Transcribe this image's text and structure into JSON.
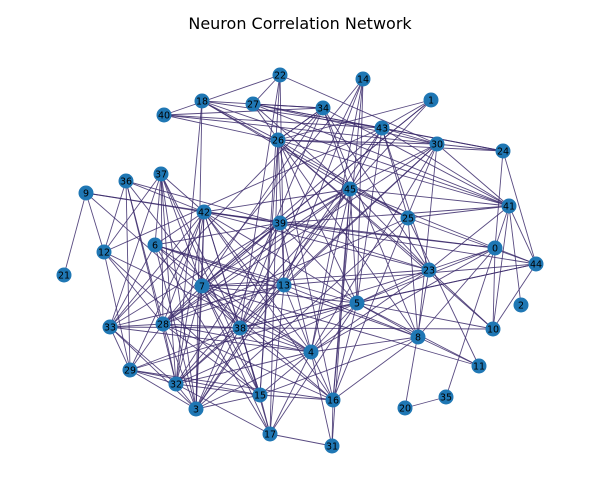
{
  "title": "Neuron Correlation Network",
  "colors": {
    "node": "#1f77b4",
    "edge": "#3b2a6b",
    "background": "#ffffff"
  },
  "nodes": [
    "0",
    "1",
    "2",
    "3",
    "4",
    "5",
    "6",
    "7",
    "8",
    "9",
    "10",
    "11",
    "12",
    "13",
    "14",
    "15",
    "16",
    "17",
    "18",
    "20",
    "21",
    "22",
    "23",
    "24",
    "25",
    "26",
    "27",
    "28",
    "29",
    "30",
    "31",
    "32",
    "33",
    "34",
    "35",
    "36",
    "37",
    "38",
    "39",
    "40",
    "41",
    "42",
    "43",
    "44",
    "45"
  ],
  "edges": [
    [
      "9",
      "21"
    ],
    [
      "20",
      "35"
    ],
    [
      "2",
      "41"
    ],
    [
      "0",
      "41"
    ],
    [
      "10",
      "41"
    ],
    [
      "44",
      "41"
    ],
    [
      "37",
      "6"
    ],
    [
      "37",
      "42"
    ],
    [
      "37",
      "7"
    ],
    [
      "37",
      "28"
    ],
    [
      "37",
      "32"
    ],
    [
      "37",
      "38"
    ],
    [
      "37",
      "3"
    ],
    [
      "37",
      "15"
    ],
    [
      "37",
      "12"
    ],
    [
      "37",
      "33"
    ],
    [
      "36",
      "42"
    ],
    [
      "36",
      "39"
    ],
    [
      "36",
      "28"
    ],
    [
      "36",
      "32"
    ],
    [
      "36",
      "29"
    ],
    [
      "36",
      "12"
    ],
    [
      "36",
      "38"
    ],
    [
      "42",
      "6"
    ],
    [
      "42",
      "7"
    ],
    [
      "42",
      "38"
    ],
    [
      "42",
      "32"
    ],
    [
      "42",
      "3"
    ],
    [
      "42",
      "15"
    ],
    [
      "42",
      "16"
    ],
    [
      "42",
      "39"
    ],
    [
      "42",
      "23"
    ],
    [
      "42",
      "29"
    ],
    [
      "42",
      "4"
    ],
    [
      "42",
      "13"
    ],
    [
      "42",
      "5"
    ],
    [
      "42",
      "0"
    ],
    [
      "42",
      "28"
    ],
    [
      "42",
      "33"
    ],
    [
      "42",
      "45"
    ],
    [
      "39",
      "0"
    ],
    [
      "39",
      "44"
    ],
    [
      "39",
      "41"
    ],
    [
      "39",
      "4"
    ],
    [
      "39",
      "5"
    ],
    [
      "39",
      "6"
    ],
    [
      "39",
      "7"
    ],
    [
      "39",
      "33"
    ],
    [
      "39",
      "9"
    ],
    [
      "39",
      "32"
    ],
    [
      "39",
      "38"
    ],
    [
      "39",
      "28"
    ],
    [
      "39",
      "23"
    ],
    [
      "45",
      "1"
    ],
    [
      "45",
      "41"
    ],
    [
      "45",
      "4"
    ],
    [
      "45",
      "5"
    ],
    [
      "45",
      "7"
    ],
    [
      "45",
      "28"
    ],
    [
      "45",
      "16"
    ],
    [
      "45",
      "23"
    ],
    [
      "45",
      "32"
    ],
    [
      "45",
      "38"
    ],
    [
      "45",
      "25"
    ],
    [
      "45",
      "3"
    ],
    [
      "45",
      "39"
    ],
    [
      "45",
      "31"
    ],
    [
      "45",
      "0"
    ],
    [
      "14",
      "4"
    ],
    [
      "14",
      "16"
    ],
    [
      "14",
      "5"
    ],
    [
      "14",
      "13"
    ],
    [
      "14",
      "38"
    ],
    [
      "14",
      "28"
    ],
    [
      "22",
      "40"
    ],
    [
      "22",
      "13"
    ],
    [
      "22",
      "27"
    ],
    [
      "22",
      "15"
    ],
    [
      "22",
      "30"
    ],
    [
      "22",
      "38"
    ],
    [
      "18",
      "26"
    ],
    [
      "18",
      "34"
    ],
    [
      "18",
      "43"
    ],
    [
      "18",
      "41"
    ],
    [
      "18",
      "25"
    ],
    [
      "18",
      "45"
    ],
    [
      "18",
      "3"
    ],
    [
      "18",
      "32"
    ],
    [
      "40",
      "34"
    ],
    [
      "40",
      "43"
    ],
    [
      "40",
      "26"
    ],
    [
      "40",
      "30"
    ],
    [
      "27",
      "30"
    ],
    [
      "27",
      "34"
    ],
    [
      "27",
      "43"
    ],
    [
      "27",
      "41"
    ],
    [
      "27",
      "24"
    ],
    [
      "27",
      "45"
    ],
    [
      "27",
      "8"
    ],
    [
      "34",
      "26"
    ],
    [
      "34",
      "41"
    ],
    [
      "34",
      "7"
    ],
    [
      "34",
      "33"
    ],
    [
      "34",
      "8"
    ],
    [
      "34",
      "3"
    ],
    [
      "34",
      "45"
    ],
    [
      "34",
      "23"
    ],
    [
      "26",
      "13"
    ],
    [
      "26",
      "15"
    ],
    [
      "26",
      "16"
    ],
    [
      "26",
      "25"
    ],
    [
      "26",
      "30"
    ],
    [
      "26",
      "24"
    ],
    [
      "26",
      "5"
    ],
    [
      "26",
      "23"
    ],
    [
      "26",
      "10"
    ],
    [
      "26",
      "1"
    ],
    [
      "26",
      "17"
    ],
    [
      "26",
      "34"
    ],
    [
      "26",
      "41"
    ],
    [
      "43",
      "24"
    ],
    [
      "43",
      "30"
    ],
    [
      "43",
      "25"
    ],
    [
      "43",
      "23"
    ],
    [
      "43",
      "7"
    ],
    [
      "43",
      "41"
    ],
    [
      "43",
      "12"
    ],
    [
      "43",
      "5"
    ],
    [
      "43",
      "3"
    ],
    [
      "43",
      "45"
    ],
    [
      "1",
      "39"
    ],
    [
      "1",
      "7"
    ],
    [
      "1",
      "43"
    ],
    [
      "30",
      "32"
    ],
    [
      "30",
      "24"
    ],
    [
      "30",
      "41"
    ],
    [
      "30",
      "4"
    ],
    [
      "30",
      "16"
    ],
    [
      "30",
      "38"
    ],
    [
      "30",
      "28"
    ],
    [
      "30",
      "8"
    ],
    [
      "30",
      "39"
    ],
    [
      "25",
      "41"
    ],
    [
      "25",
      "8"
    ],
    [
      "25",
      "11"
    ],
    [
      "25",
      "44"
    ],
    [
      "25",
      "28"
    ],
    [
      "25",
      "3"
    ],
    [
      "9",
      "12"
    ],
    [
      "9",
      "42"
    ],
    [
      "9",
      "38"
    ],
    [
      "12",
      "29"
    ],
    [
      "12",
      "28"
    ],
    [
      "12",
      "4"
    ],
    [
      "12",
      "15"
    ],
    [
      "6",
      "4"
    ],
    [
      "6",
      "17"
    ],
    [
      "6",
      "16"
    ],
    [
      "6",
      "3"
    ],
    [
      "6",
      "5"
    ],
    [
      "6",
      "33"
    ],
    [
      "6",
      "8"
    ],
    [
      "6",
      "13"
    ],
    [
      "7",
      "13"
    ],
    [
      "7",
      "28"
    ],
    [
      "7",
      "38"
    ],
    [
      "7",
      "32"
    ],
    [
      "7",
      "3"
    ],
    [
      "7",
      "4"
    ],
    [
      "7",
      "5"
    ],
    [
      "7",
      "15"
    ],
    [
      "7",
      "17"
    ],
    [
      "7",
      "11"
    ],
    [
      "7",
      "23"
    ],
    [
      "13",
      "33"
    ],
    [
      "13",
      "28"
    ],
    [
      "13",
      "4"
    ],
    [
      "13",
      "17"
    ],
    [
      "13",
      "8"
    ],
    [
      "13",
      "44"
    ],
    [
      "33",
      "29"
    ],
    [
      "33",
      "28"
    ],
    [
      "33",
      "38"
    ],
    [
      "33",
      "4"
    ],
    [
      "33",
      "32"
    ],
    [
      "33",
      "3"
    ],
    [
      "28",
      "38"
    ],
    [
      "28",
      "32"
    ],
    [
      "28",
      "3"
    ],
    [
      "28",
      "15"
    ],
    [
      "28",
      "29"
    ],
    [
      "28",
      "16"
    ],
    [
      "28",
      "4"
    ],
    [
      "38",
      "32"
    ],
    [
      "38",
      "15"
    ],
    [
      "38",
      "3"
    ],
    [
      "38",
      "4"
    ],
    [
      "38",
      "16"
    ],
    [
      "38",
      "5"
    ],
    [
      "38",
      "29"
    ],
    [
      "38",
      "10"
    ],
    [
      "38",
      "17"
    ],
    [
      "38",
      "44"
    ],
    [
      "38",
      "23"
    ],
    [
      "29",
      "32"
    ],
    [
      "29",
      "3"
    ],
    [
      "29",
      "16"
    ],
    [
      "29",
      "15"
    ],
    [
      "29",
      "5"
    ],
    [
      "32",
      "3"
    ],
    [
      "32",
      "15"
    ],
    [
      "32",
      "4"
    ],
    [
      "32",
      "5"
    ],
    [
      "32",
      "17"
    ],
    [
      "3",
      "4"
    ],
    [
      "3",
      "15"
    ],
    [
      "15",
      "4"
    ],
    [
      "15",
      "8"
    ],
    [
      "15",
      "16"
    ],
    [
      "15",
      "17"
    ],
    [
      "4",
      "16"
    ],
    [
      "4",
      "5"
    ],
    [
      "4",
      "8"
    ],
    [
      "4",
      "23"
    ],
    [
      "4",
      "0"
    ],
    [
      "4",
      "31"
    ],
    [
      "16",
      "31"
    ],
    [
      "16",
      "8"
    ],
    [
      "16",
      "5"
    ],
    [
      "17",
      "31"
    ],
    [
      "17",
      "5"
    ],
    [
      "17",
      "4"
    ],
    [
      "5",
      "23"
    ],
    [
      "5",
      "8"
    ],
    [
      "5",
      "11"
    ],
    [
      "5",
      "10"
    ],
    [
      "5",
      "0"
    ],
    [
      "5",
      "44"
    ],
    [
      "23",
      "20"
    ],
    [
      "23",
      "10"
    ],
    [
      "23",
      "0"
    ],
    [
      "23",
      "41"
    ],
    [
      "0",
      "44"
    ],
    [
      "0",
      "10"
    ],
    [
      "0",
      "24"
    ],
    [
      "0",
      "35"
    ],
    [
      "0",
      "8"
    ],
    [
      "44",
      "10"
    ],
    [
      "44",
      "24"
    ],
    [
      "11",
      "8"
    ]
  ]
}
